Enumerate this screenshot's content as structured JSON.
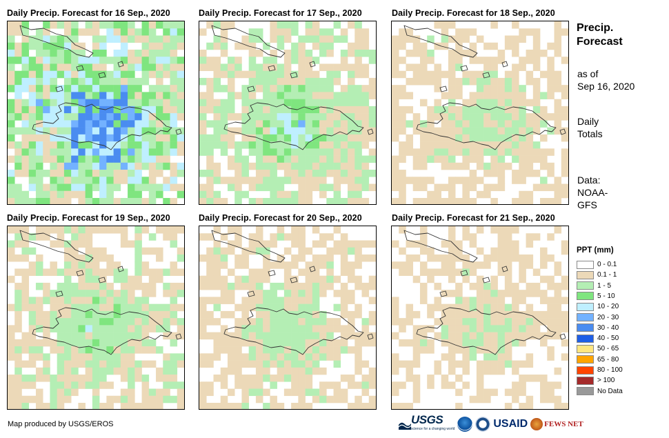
{
  "panels": [
    {
      "title": "Daily Precip. Forecast for 16 Sep., 2020",
      "seed": 11,
      "wet": 0.95
    },
    {
      "title": "Daily Precip. Forecast for 17 Sep., 2020",
      "seed": 23,
      "wet": 0.55
    },
    {
      "title": "Daily Precip. Forecast for 18 Sep., 2020",
      "seed": 37,
      "wet": 0.35
    },
    {
      "title": "Daily Precip. Forecast for 19 Sep., 2020",
      "seed": 41,
      "wet": 0.45
    },
    {
      "title": "Daily Precip. Forecast for 20 Sep., 2020",
      "seed": 53,
      "wet": 0.38
    },
    {
      "title": "Daily Precip. Forecast for 21 Sep., 2020",
      "seed": 67,
      "wet": 0.3
    }
  ],
  "side": {
    "title_line1": "Precip.",
    "title_line2": "Forecast",
    "asof_line1": "as of",
    "asof_line2": "Sep 16, 2020",
    "totals_line1": "Daily",
    "totals_line2": "Totals",
    "data_line1": "Data:",
    "data_line2": "NOAA-",
    "data_line3": "GFS"
  },
  "legend": {
    "title": "PPT (mm)",
    "items": [
      {
        "label": "0 - 0.1",
        "color": "#ffffff"
      },
      {
        "label": "0.1 - 1",
        "color": "#ecd9b8"
      },
      {
        "label": "1 - 5",
        "color": "#b4eeb4"
      },
      {
        "label": "5 - 10",
        "color": "#7fe57f"
      },
      {
        "label": "10 - 20",
        "color": "#bfefff"
      },
      {
        "label": "20 - 30",
        "color": "#73b2ff"
      },
      {
        "label": "30 - 40",
        "color": "#4a8cf0"
      },
      {
        "label": "40 - 50",
        "color": "#1f5fe6"
      },
      {
        "label": "50 - 65",
        "color": "#ffe680"
      },
      {
        "label": "65 - 80",
        "color": "#ffa500"
      },
      {
        "label": "80 - 100",
        "color": "#ff4500"
      },
      {
        "label": "> 100",
        "color": "#a52a2a"
      },
      {
        "label": "No Data",
        "color": "#999999"
      }
    ]
  },
  "footer": {
    "credit": "Map produced by USGS/EROS",
    "logo_usgs": "USGS",
    "logo_usgs_sub": "science for a changing world",
    "logo_usaid": "USAID",
    "logo_fews": "FEWS NET"
  }
}
